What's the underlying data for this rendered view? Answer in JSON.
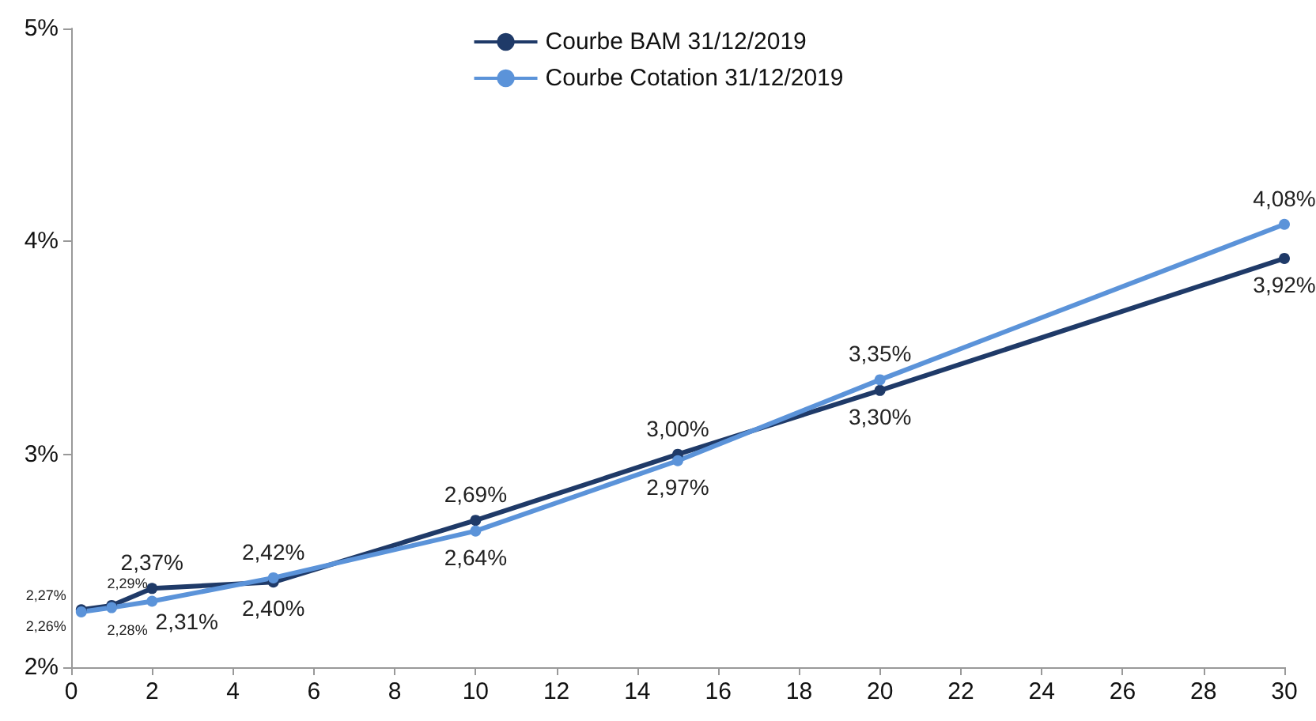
{
  "chart_data": {
    "type": "line",
    "x": [
      0.25,
      1,
      2,
      5,
      10,
      15,
      20,
      30
    ],
    "series": [
      {
        "name": "Courbe BAM 31/12/2019",
        "color": "#1f3a68",
        "values": [
          2.27,
          2.29,
          2.37,
          2.4,
          2.69,
          3.0,
          3.3,
          3.92
        ],
        "value_labels": [
          "2,27%",
          "2,29%",
          "2,37%",
          "2,40%",
          "2,69%",
          "3,00%",
          "3,30%",
          "3,92%"
        ]
      },
      {
        "name": "Courbe Cotation 31/12/2019",
        "color": "#5b93d9",
        "values": [
          2.26,
          2.28,
          2.31,
          2.42,
          2.64,
          2.97,
          3.35,
          4.08
        ],
        "value_labels": [
          "2,26%",
          "2,28%",
          "2,31%",
          "2,42%",
          "2,64%",
          "2,97%",
          "3,35%",
          "4,08%"
        ]
      }
    ],
    "xlim": [
      0,
      30
    ],
    "xticks": [
      0,
      2,
      4,
      6,
      8,
      10,
      12,
      14,
      16,
      18,
      20,
      22,
      24,
      26,
      28,
      30
    ],
    "ylim": [
      2,
      5
    ],
    "yticks": [
      {
        "value": 2,
        "label": "2%"
      },
      {
        "value": 3,
        "label": "3%"
      },
      {
        "value": 4,
        "label": "4%"
      },
      {
        "value": 5,
        "label": "5%"
      }
    ],
    "grid": false,
    "legend": "top",
    "marker": "circle",
    "line_style": "solid"
  }
}
